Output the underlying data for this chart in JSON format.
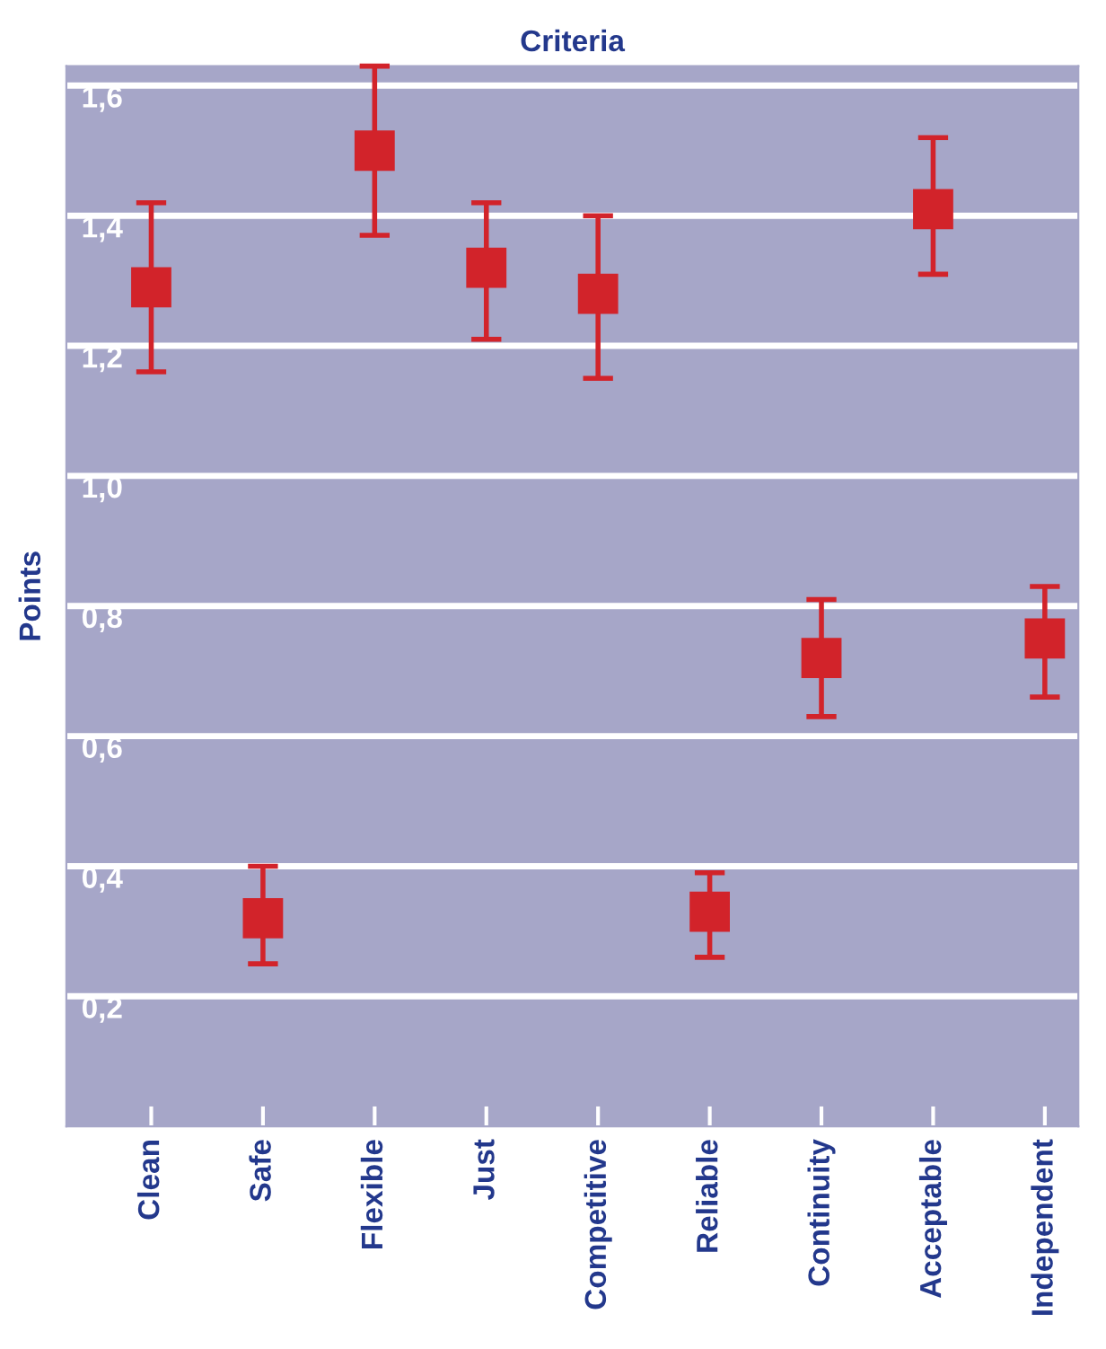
{
  "chart_data": {
    "type": "scatter",
    "title": "Criteria",
    "ylabel": "Points",
    "categories": [
      "Clean",
      "Safe",
      "Flexible",
      "Just",
      "Competitive",
      "Reliable",
      "Continuity",
      "Acceptable",
      "Independent"
    ],
    "series": [
      {
        "color": "#d2232a",
        "values": [
          1.29,
          0.32,
          1.5,
          1.32,
          1.28,
          0.33,
          0.72,
          1.41,
          0.75
        ],
        "errors": [
          [
            1.16,
            1.42
          ],
          [
            0.25,
            0.4
          ],
          [
            1.37,
            1.63
          ],
          [
            1.21,
            1.42
          ],
          [
            1.15,
            1.4
          ],
          [
            0.26,
            0.39
          ],
          [
            0.63,
            0.81
          ],
          [
            1.31,
            1.52
          ],
          [
            0.66,
            0.83
          ]
        ]
      }
    ],
    "marker": "square",
    "ylim": [
      0,
      1.63
    ],
    "yticks": [
      {
        "value": 0.2,
        "label": "0,2"
      },
      {
        "value": 0.4,
        "label": "0,4"
      },
      {
        "value": 0.6,
        "label": "0,6"
      },
      {
        "value": 0.8,
        "label": "0,8"
      },
      {
        "value": 1.0,
        "label": "1,0"
      },
      {
        "value": 1.2,
        "label": "1,2"
      },
      {
        "value": 1.4,
        "label": "1,4"
      },
      {
        "value": 1.6,
        "label": "1,6"
      }
    ],
    "grid": "y"
  }
}
